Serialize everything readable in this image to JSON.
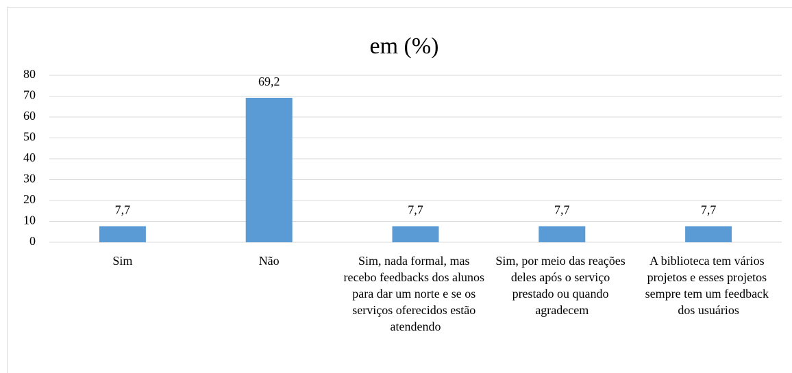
{
  "chart_data": {
    "type": "bar",
    "title": "em (%)",
    "categories": [
      "Sim",
      "Não",
      "Sim, nada formal, mas recebo feedbacks dos alunos para dar um norte e se os serviços oferecidos estão atendendo",
      "Sim, por meio das reações deles após o serviço prestado ou quando agradecem",
      "A biblioteca tem vários projetos e esses projetos sempre tem um feedback dos usuários"
    ],
    "values": [
      7.7,
      69.2,
      7.7,
      7.7,
      7.7
    ],
    "value_labels": [
      "7,7",
      "69,2",
      "7,7",
      "7,7",
      "7,7"
    ],
    "color": "#5b9bd5",
    "ylim": [
      0,
      80
    ],
    "yticks": [
      0,
      10,
      20,
      30,
      40,
      50,
      60,
      70,
      80
    ],
    "grid": true
  }
}
